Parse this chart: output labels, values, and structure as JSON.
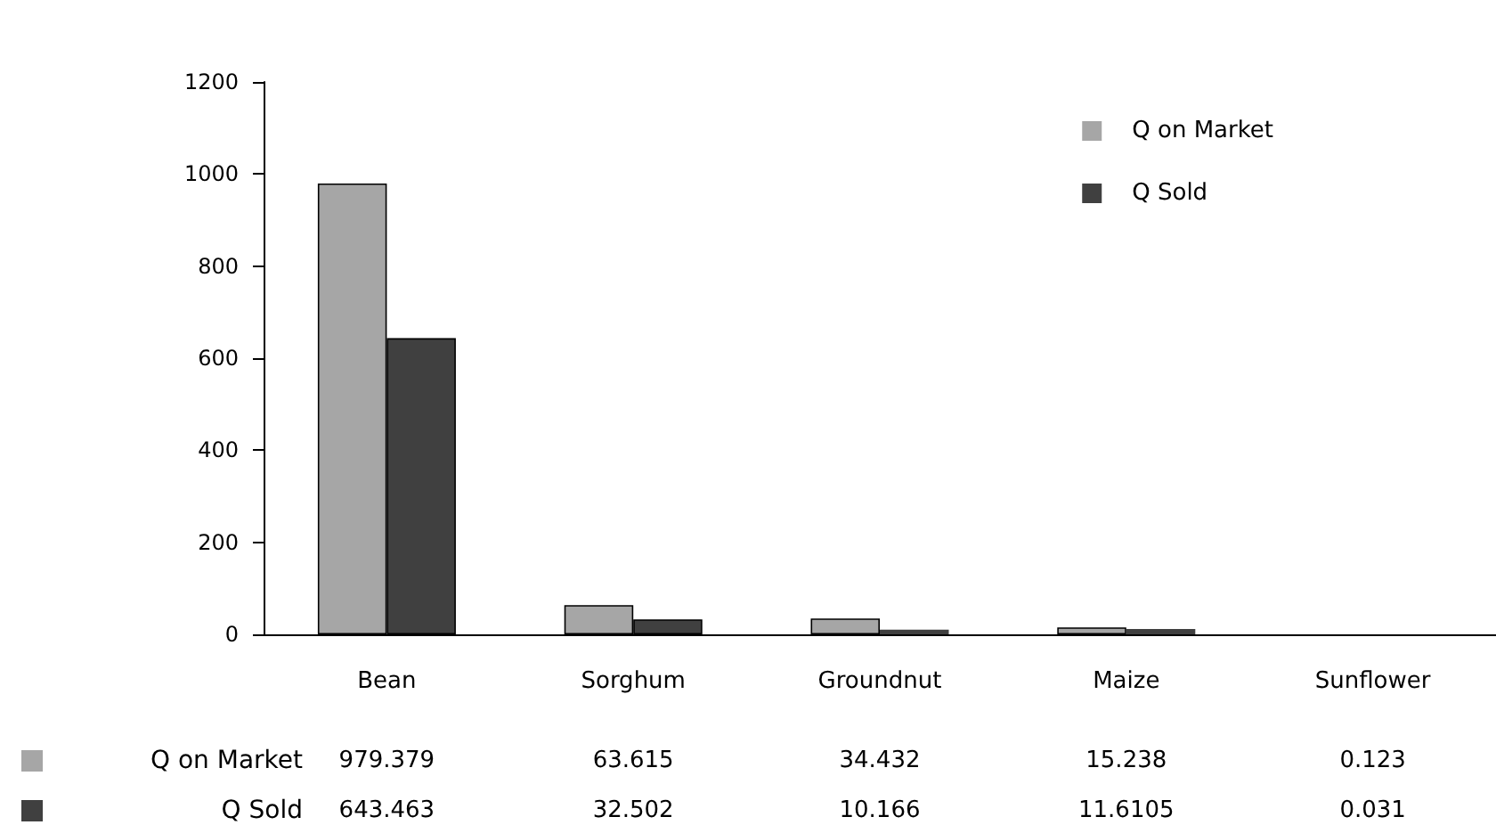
{
  "chart_data": {
    "type": "bar",
    "categories": [
      "Bean",
      "Sorghum",
      "Groundnut",
      "Maize",
      "Sunflower"
    ],
    "series": [
      {
        "name": "Q on Market",
        "color": "#a6a6a6",
        "values": [
          979.379,
          63.615,
          34.432,
          15.238,
          0.123
        ]
      },
      {
        "name": "Q Sold",
        "color": "#404040",
        "values": [
          643.463,
          32.502,
          10.166,
          11.6105,
          0.031
        ]
      }
    ],
    "ylim": [
      0,
      1200
    ],
    "yticks": [
      0,
      200,
      400,
      600,
      800,
      1000,
      1200
    ],
    "grid": false,
    "legend": "top right",
    "data_labels": true
  }
}
